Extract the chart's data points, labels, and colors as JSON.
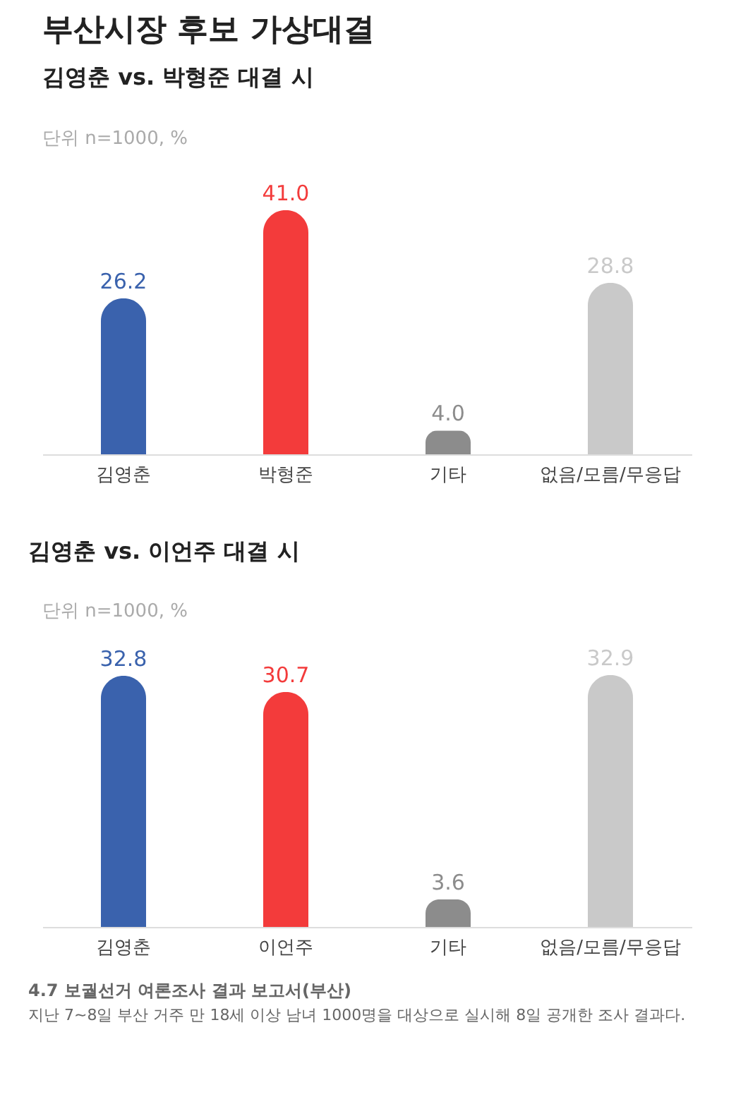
{
  "chart_data": [
    {
      "type": "bar",
      "title": "부산시장 후보 가상대결",
      "subtitle": "김영춘 vs. 박형준 대결 시",
      "annotations": [
        "단위 n=1000, %"
      ],
      "categories": [
        "김영춘",
        "박형준",
        "기타",
        "없음/모름/무응답"
      ],
      "values": [
        26.2,
        41.0,
        4.0,
        28.8
      ],
      "value_labels": [
        "26.2",
        "41.0",
        "4.0",
        "28.8"
      ],
      "colors": [
        "#3a62ad",
        "#f33b3b",
        "#8c8c8c",
        "#c9c9c9"
      ],
      "grid": false
    },
    {
      "type": "bar",
      "title": "김영춘 vs. 이언주 대결 시",
      "annotations": [
        "단위 n=1000, %",
        "4.7 보궐선거 여론조사 결과 보고서(부산)",
        "지난 7~8일 부산 거주 만 18세 이상 남녀 1000명을 대상으로 실시해 8일 공개한 조사 결과다."
      ],
      "categories": [
        "김영춘",
        "이언주",
        "기타",
        "없음/모름/무응답"
      ],
      "values": [
        32.8,
        30.7,
        3.6,
        32.9
      ],
      "value_labels": [
        "32.8",
        "30.7",
        "3.6",
        "32.9"
      ],
      "colors": [
        "#3a62ad",
        "#f33b3b",
        "#8c8c8c",
        "#c9c9c9"
      ],
      "grid": false
    }
  ]
}
